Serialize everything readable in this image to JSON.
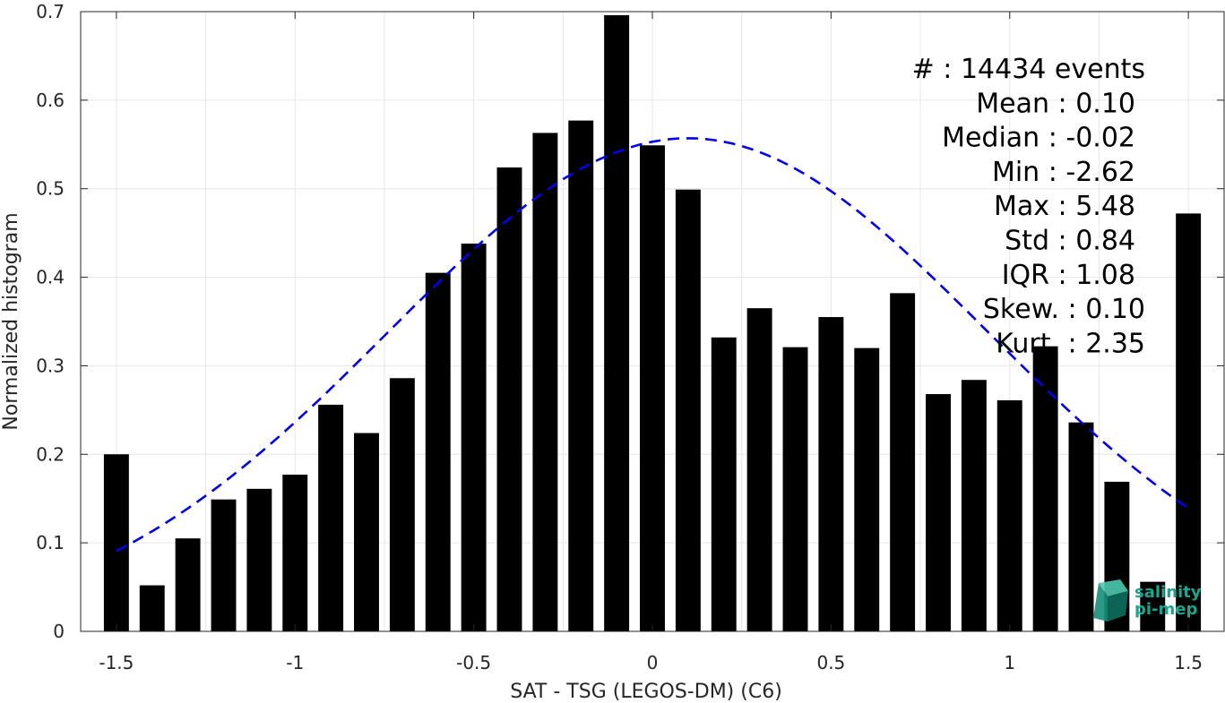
{
  "chart_data": {
    "type": "bar",
    "xlabel": "SAT - TSG (LEGOS-DM) (C6)",
    "ylabel": "Normalized histogram",
    "xlim": [
      -1.6,
      1.6
    ],
    "ylim": [
      0,
      0.7
    ],
    "xticks": [
      -1.5,
      -1,
      -0.5,
      0,
      0.5,
      1,
      1.5
    ],
    "xtick_labels": [
      "-1.5",
      "-1",
      "-0.5",
      "0",
      "0.5",
      "1",
      "1.5"
    ],
    "yticks": [
      0,
      0.1,
      0.2,
      0.3,
      0.4,
      0.5,
      0.6,
      0.7
    ],
    "ytick_labels": [
      "0",
      "0.1",
      "0.2",
      "0.3",
      "0.4",
      "0.5",
      "0.6",
      "0.7"
    ],
    "grid": true,
    "bar_color": "#000000",
    "bar_width": 0.07,
    "bins": [
      -1.5,
      -1.4,
      -1.3,
      -1.2,
      -1.1,
      -1.0,
      -0.9,
      -0.8,
      -0.7,
      -0.6,
      -0.5,
      -0.4,
      -0.3,
      -0.2,
      -0.1,
      0.0,
      0.1,
      0.2,
      0.3,
      0.4,
      0.5,
      0.6,
      0.7,
      0.8,
      0.9,
      1.0,
      1.1,
      1.2,
      1.3,
      1.4,
      1.5
    ],
    "values": [
      0.2,
      0.052,
      0.105,
      0.149,
      0.161,
      0.177,
      0.256,
      0.224,
      0.286,
      0.405,
      0.438,
      0.524,
      0.563,
      0.577,
      0.696,
      0.549,
      0.499,
      0.332,
      0.365,
      0.321,
      0.355,
      0.32,
      0.382,
      0.268,
      0.284,
      0.261,
      0.322,
      0.236,
      0.169,
      0.056,
      0.472
    ],
    "fit_curve": {
      "style": "dashed",
      "color": "#0000ee",
      "mean": 0.1,
      "std": 0.84,
      "scale": 0.557,
      "x_range": [
        -1.5,
        1.5
      ]
    },
    "stats_lines": [
      "#  : 14434 events",
      "Mean : 0.10",
      "Median : -0.02",
      "Min : -2.62",
      "Max : 5.48",
      "Std : 0.84",
      "IQR : 1.08",
      "Skew. : 0.10",
      "Kurt. : 2.35"
    ]
  },
  "logo": {
    "line1": "salinity",
    "line2": "pi-mep",
    "color": "#1aa58f"
  }
}
